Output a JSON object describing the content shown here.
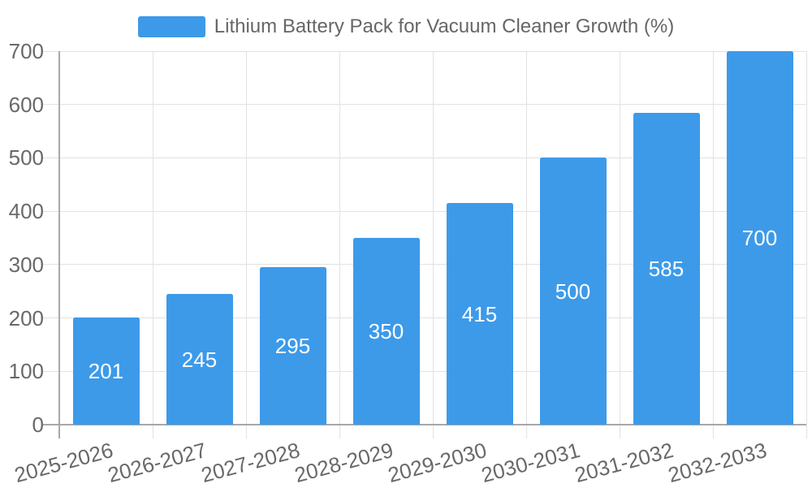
{
  "colors": {
    "bar": "#3d9ae9",
    "bar_label": "#ffffff",
    "axis": "#a8a8a8",
    "grid": "#e2e2e2",
    "label_text": "#696969",
    "legend_text": "#666666",
    "background": "#ffffff"
  },
  "legend": {
    "label": "Lithium Battery Pack for Vacuum Cleaner Growth (%)"
  },
  "chart_data": {
    "type": "bar",
    "title": "Lithium Battery Pack for Vacuum Cleaner Growth (%)",
    "series_name": "Lithium Battery Pack for Vacuum Cleaner Growth (%)",
    "categories": [
      "2025-2026",
      "2026-2027",
      "2027-2028",
      "2028-2029",
      "2029-2030",
      "2030-2031",
      "2031-2032",
      "2032-2033"
    ],
    "values": [
      201,
      245,
      295,
      350,
      415,
      500,
      585,
      700
    ],
    "xlabel": "",
    "ylabel": "",
    "ylim": [
      0,
      700
    ],
    "yticks": [
      0,
      100,
      200,
      300,
      400,
      500,
      600,
      700
    ],
    "grid": true,
    "legend_position": "top-center",
    "value_label_position": "inside-center",
    "value_label_color": "#ffffff",
    "xtick_rotation_deg": -15
  }
}
